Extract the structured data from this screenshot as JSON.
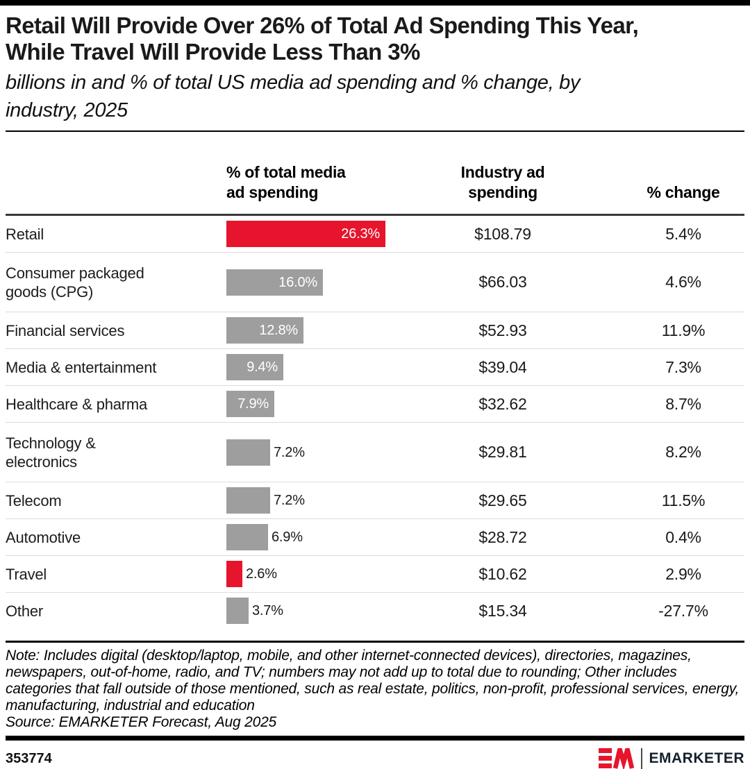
{
  "header": {
    "title_lines": [
      "Retail Will Provide Over 26% of Total Ad Spending This Year,",
      "While Travel Will Provide Less Than 3%"
    ],
    "subtitle_lines": [
      "billions in and % of total US media ad spending and % change, by",
      "industry, 2025"
    ]
  },
  "colors": {
    "accent_red": "#e6152d",
    "bar_gray": "#9e9e9e",
    "header_rule": "#3a3a3a",
    "row_divider": "#dcdcdc"
  },
  "table": {
    "headers": [
      {
        "lines": [
          "% of total media",
          "ad spending"
        ]
      },
      {
        "lines": [
          "Industry ad",
          "spending"
        ]
      },
      {
        "lines": [
          "% change"
        ]
      }
    ],
    "rows": [
      {
        "label_lines": [
          "Retail"
        ],
        "share": "26.3%",
        "share_value": 26.3,
        "spend": "$108.79",
        "change": "5.4%",
        "highlight": true
      },
      {
        "label_lines": [
          "Consumer packaged",
          "goods (CPG)"
        ],
        "share": "16.0%",
        "share_value": 16.0,
        "spend": "$66.03",
        "change": "4.6%",
        "highlight": false
      },
      {
        "label_lines": [
          "Financial services"
        ],
        "share": "12.8%",
        "share_value": 12.8,
        "spend": "$52.93",
        "change": "11.9%",
        "highlight": false
      },
      {
        "label_lines": [
          "Media & entertainment"
        ],
        "share": "9.4%",
        "share_value": 9.4,
        "spend": "$39.04",
        "change": "7.3%",
        "highlight": false
      },
      {
        "label_lines": [
          "Healthcare & pharma"
        ],
        "share": "7.9%",
        "share_value": 7.9,
        "spend": "$32.62",
        "change": "8.7%",
        "highlight": false
      },
      {
        "label_lines": [
          "Technology &",
          "electronics"
        ],
        "share": "7.2%",
        "share_value": 7.2,
        "spend": "$29.81",
        "change": "8.2%",
        "highlight": false
      },
      {
        "label_lines": [
          "Telecom"
        ],
        "share": "7.2%",
        "share_value": 7.2,
        "spend": "$29.65",
        "change": "11.5%",
        "highlight": false
      },
      {
        "label_lines": [
          "Automotive"
        ],
        "share": "6.9%",
        "share_value": 6.9,
        "spend": "$28.72",
        "change": "0.4%",
        "highlight": false
      },
      {
        "label_lines": [
          "Travel"
        ],
        "share": "2.6%",
        "share_value": 2.6,
        "spend": "$10.62",
        "change": "2.9%",
        "highlight": true
      },
      {
        "label_lines": [
          "Other"
        ],
        "share": "3.7%",
        "share_value": 3.7,
        "spend": "$15.34",
        "change": "-27.7%",
        "highlight": false
      }
    ]
  },
  "chart_data": {
    "type": "bar",
    "title": "Retail Will Provide Over 26% of Total Ad Spending This Year, While Travel Will Provide Less Than 3%",
    "subtitle": "billions in and % of total US media ad spending and % change, by industry, 2025",
    "categories": [
      "Retail",
      "Consumer packaged goods (CPG)",
      "Financial services",
      "Media & entertainment",
      "Healthcare & pharma",
      "Technology & electronics",
      "Telecom",
      "Automotive",
      "Travel",
      "Other"
    ],
    "series": [
      {
        "name": "% of total media ad spending",
        "unit": "%",
        "values": [
          26.3,
          16.0,
          12.8,
          9.4,
          7.9,
          7.2,
          7.2,
          6.9,
          2.6,
          3.7
        ]
      },
      {
        "name": "Industry ad spending",
        "unit": "$ billions",
        "values": [
          108.79,
          66.03,
          52.93,
          39.04,
          32.62,
          29.81,
          29.65,
          28.72,
          10.62,
          15.34
        ]
      },
      {
        "name": "% change",
        "unit": "%",
        "values": [
          5.4,
          4.6,
          11.9,
          7.3,
          8.7,
          8.2,
          11.5,
          0.4,
          2.9,
          -27.7
        ]
      }
    ],
    "highlighted_categories": [
      "Retail",
      "Travel"
    ],
    "layout": {
      "orientation": "horizontal",
      "grid": false,
      "legend": "none",
      "bar_value_labels": true
    }
  },
  "note": {
    "text": "Note: Includes digital (desktop/laptop, mobile, and other internet-connected devices), directories, magazines, newspapers, out-of-home, radio, and TV; numbers may not add up to total due to rounding; Other includes categories that fall outside of those mentioned, such as real estate, politics, non-profit, professional services, energy, manufacturing, industrial and education",
    "source": "Source: EMARKETER Forecast, Aug 2025"
  },
  "footer": {
    "chart_id": "353774",
    "brand_mark": "EM",
    "brand_name": "EMARKETER"
  }
}
